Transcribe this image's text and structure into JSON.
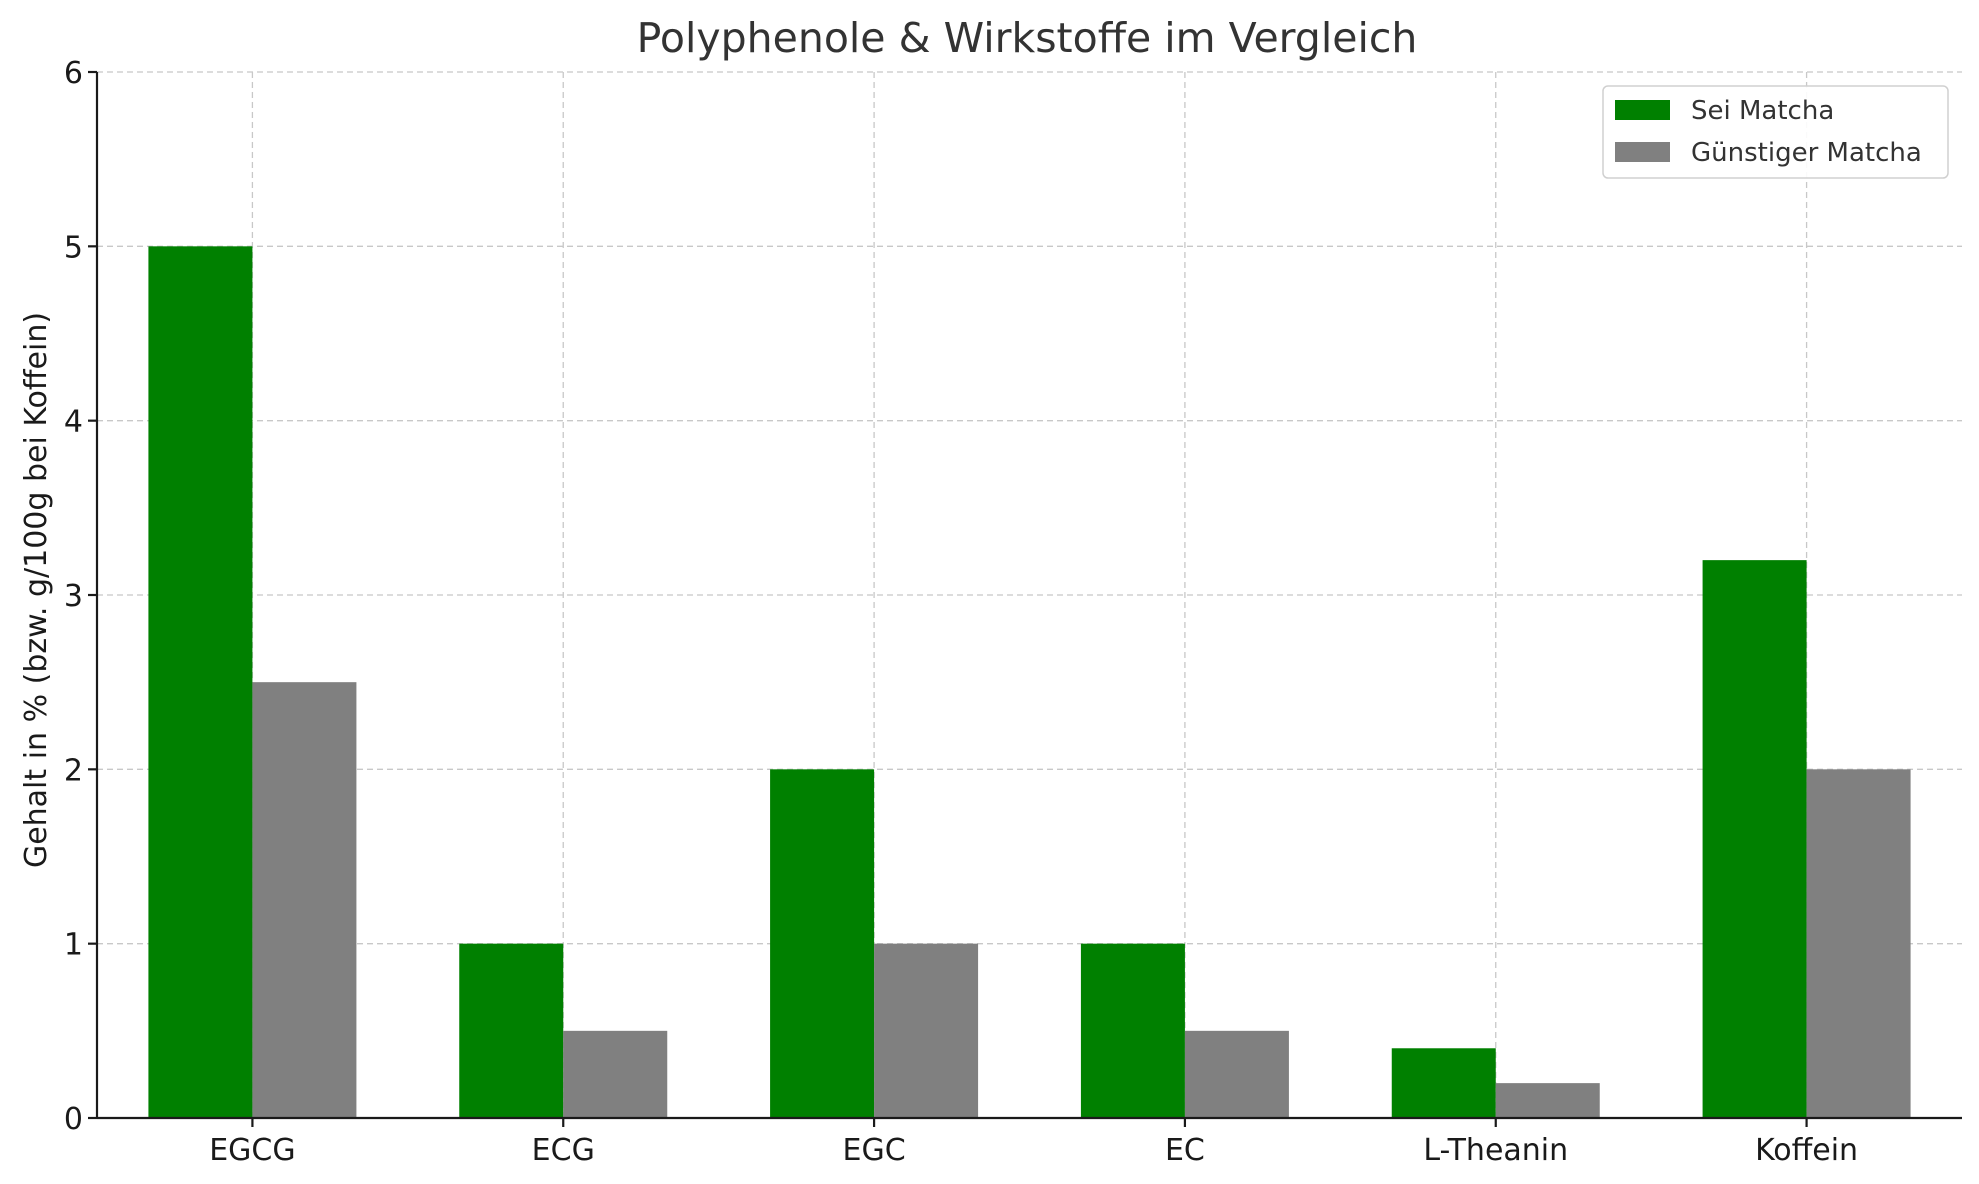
{
  "chart_data": {
    "type": "bar",
    "title": "Polyphenole & Wirkstoffe im Vergleich",
    "xlabel": "",
    "ylabel": "Gehalt in % (bzw. g/100g bei Koffein)",
    "categories": [
      "EGCG",
      "ECG",
      "EGC",
      "EC",
      "L-Theanin",
      "Koffein"
    ],
    "series": [
      {
        "name": "Sei Matcha",
        "color": "#008000",
        "values": [
          5.0,
          1.0,
          2.0,
          1.0,
          0.4,
          3.2
        ]
      },
      {
        "name": "Günstiger Matcha",
        "color": "#808080",
        "values": [
          2.5,
          0.5,
          1.0,
          0.5,
          0.2,
          2.0
        ]
      }
    ],
    "ylim": [
      0,
      6
    ],
    "yticks": [
      "0",
      "1",
      "2",
      "3",
      "4",
      "5",
      "6"
    ],
    "grid": true,
    "legend_position": "top-right"
  }
}
